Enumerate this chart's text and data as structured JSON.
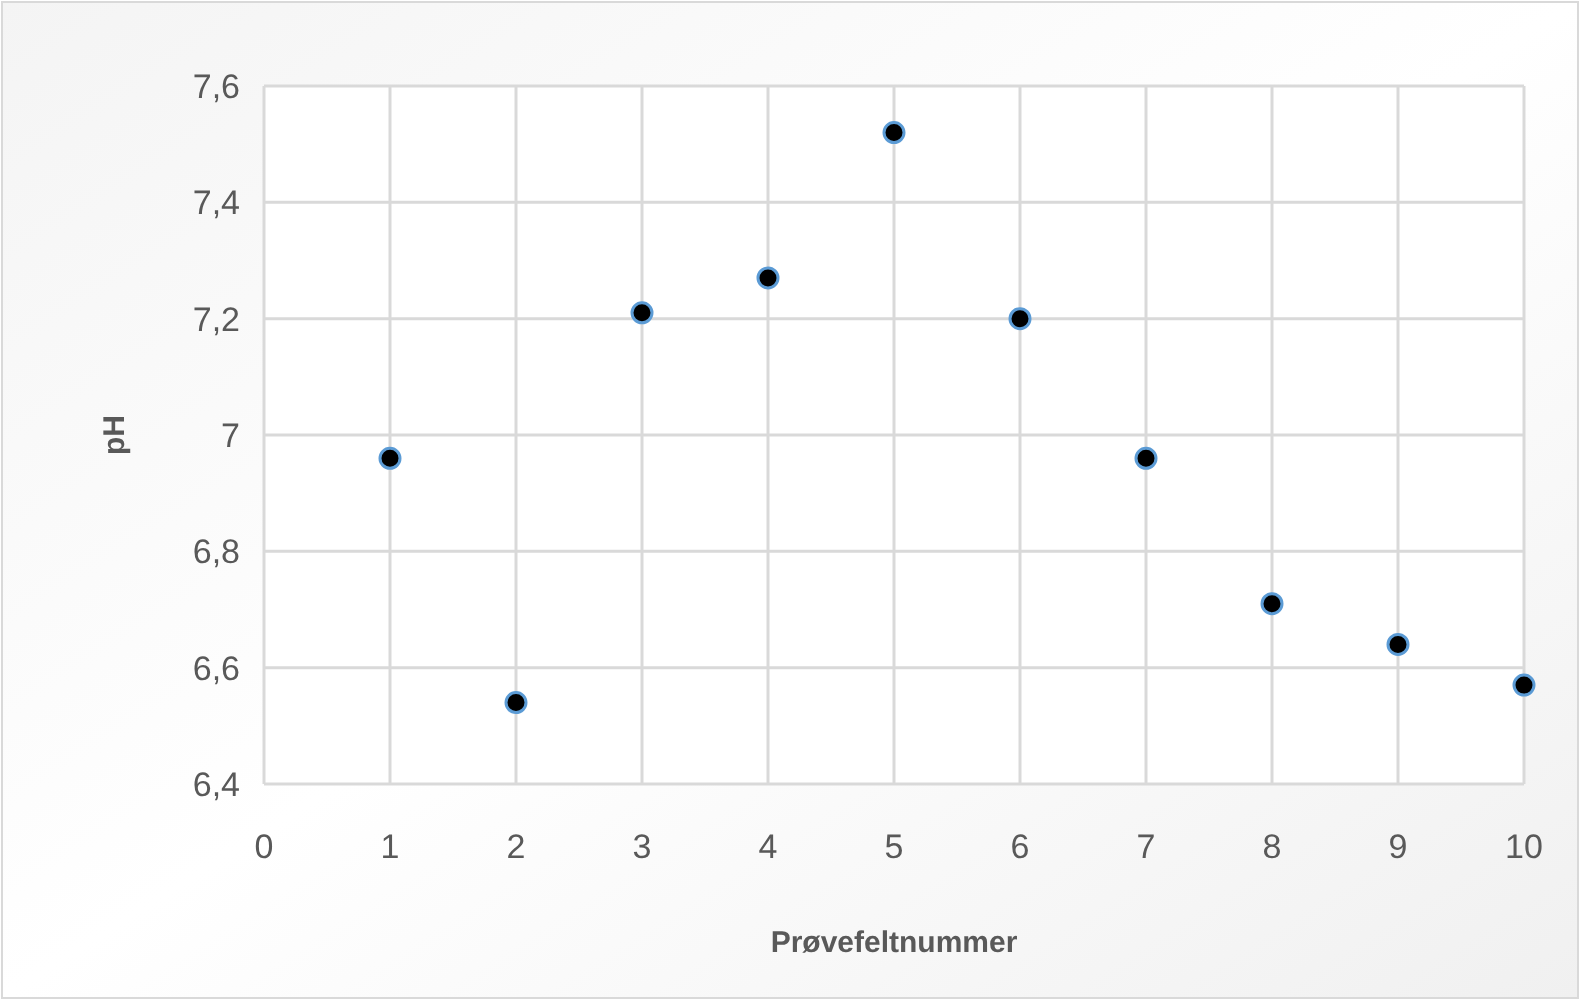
{
  "chart_data": {
    "type": "scatter",
    "xlabel": "Prøvefeltnummer",
    "ylabel": "pH",
    "x": [
      1,
      2,
      3,
      4,
      5,
      6,
      7,
      8,
      9,
      10
    ],
    "series": [
      {
        "color": "#000000",
        "values": [
          6.96,
          6.54,
          7.21,
          7.27,
          7.52,
          7.2,
          6.96,
          6.71,
          6.64,
          6.57
        ]
      }
    ],
    "xlim": [
      0,
      10
    ],
    "xticks": [
      0,
      1,
      2,
      3,
      4,
      5,
      6,
      7,
      8,
      9,
      10
    ],
    "ylim": [
      6.4,
      7.6
    ],
    "yticks": [
      {
        "value": 6.4,
        "label": "6,4"
      },
      {
        "value": 6.6,
        "label": "6,6"
      },
      {
        "value": 6.8,
        "label": "6,8"
      },
      {
        "value": 7,
        "label": "7"
      },
      {
        "value": 7.2,
        "label": "7,2"
      },
      {
        "value": 7.4,
        "label": "7,4"
      },
      {
        "value": 7.6,
        "label": "7,6"
      }
    ],
    "grid": true,
    "marker": "circle"
  }
}
